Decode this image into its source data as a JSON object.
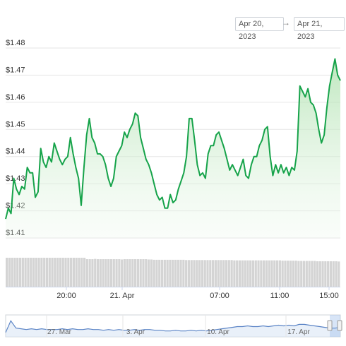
{
  "range_selector": {
    "from": "Apr 20, 2023",
    "arrow": "→",
    "to": "Apr 21, 2023"
  },
  "chart_data": [
    {
      "type": "area",
      "y_tick_labels": [
        "$1.48",
        "$1.47",
        "$1.46",
        "$1.45",
        "$1.44",
        "$1.43",
        "$1.42",
        "$1.41"
      ],
      "x_tick_labels": [
        "20:00",
        "21. Apr",
        "07:00",
        "11:00",
        "15:00"
      ],
      "ylim": [
        1.41,
        1.48
      ],
      "grid": true,
      "line_color": "#16a34a",
      "fill_color": "#c9ecc9",
      "series": [
        {
          "values": [
            1.417,
            1.421,
            1.419,
            1.432,
            1.428,
            1.426,
            1.429,
            1.428,
            1.436,
            1.434,
            1.434,
            1.425,
            1.427,
            1.443,
            1.438,
            1.436,
            1.44,
            1.438,
            1.445,
            1.442,
            1.439,
            1.437,
            1.439,
            1.44,
            1.447,
            1.441,
            1.436,
            1.432,
            1.422,
            1.436,
            1.448,
            1.454,
            1.447,
            1.445,
            1.441,
            1.441,
            1.44,
            1.437,
            1.432,
            1.429,
            1.432,
            1.44,
            1.442,
            1.444,
            1.449,
            1.447,
            1.45,
            1.452,
            1.456,
            1.455,
            1.447,
            1.443,
            1.439,
            1.437,
            1.434,
            1.43,
            1.426,
            1.424,
            1.425,
            1.421,
            1.421,
            1.426,
            1.423,
            1.424,
            1.428,
            1.431,
            1.434,
            1.44,
            1.454,
            1.454,
            1.446,
            1.437,
            1.433,
            1.434,
            1.432,
            1.441,
            1.444,
            1.444,
            1.448,
            1.449,
            1.446,
            1.443,
            1.439,
            1.435,
            1.437,
            1.435,
            1.433,
            1.436,
            1.439,
            1.433,
            1.432,
            1.437,
            1.44,
            1.44,
            1.444,
            1.446,
            1.45,
            1.451,
            1.44,
            1.433,
            1.437,
            1.434,
            1.437,
            1.434,
            1.436,
            1.433,
            1.436,
            1.435,
            1.442,
            1.466,
            1.464,
            1.462,
            1.465,
            1.46,
            1.459,
            1.456,
            1.45,
            1.445,
            1.448,
            1.458,
            1.466,
            1.471,
            1.476,
            1.47,
            1.468
          ]
        }
      ]
    },
    {
      "type": "bar",
      "name": "volume",
      "color": "#d4d4d4",
      "series": [
        {
          "values": [
            1,
            1,
            1,
            1,
            1,
            1,
            1,
            1,
            1,
            1,
            1,
            1,
            1,
            1,
            1,
            1,
            1,
            1,
            1,
            1,
            1,
            1,
            1,
            1,
            1,
            1,
            1,
            1,
            1,
            1,
            0.95,
            0.95,
            0.95,
            0.96,
            0.95,
            0.95,
            0.95,
            0.95,
            0.95,
            0.95,
            0.95,
            0.95,
            0.95,
            0.94,
            0.95,
            0.95,
            0.95,
            0.95,
            0.95,
            0.95,
            0.95,
            0.95,
            0.95,
            0.94,
            0.94,
            0.93,
            0.93,
            0.93,
            0.93,
            0.93,
            0.93,
            0.93,
            0.93,
            0.93,
            0.93,
            0.93,
            0.93,
            0.92,
            0.92,
            0.92,
            0.92,
            0.92,
            0.92,
            0.92,
            0.92,
            0.92,
            0.92,
            0.92,
            0.92,
            0.92,
            0.92,
            0.92,
            0.92,
            0.92,
            0.92,
            0.91,
            0.91,
            0.91,
            0.91,
            0.91,
            0.91,
            0.91,
            0.91,
            0.91,
            0.91,
            0.91,
            0.91,
            0.91,
            0.91,
            0.91,
            0.91,
            0.91,
            0.91,
            0.9,
            0.9,
            0.9,
            0.9,
            0.9,
            0.9,
            0.89,
            0.89,
            0.89,
            0.89,
            0.89,
            0.89,
            0.89,
            0.88,
            0.88,
            0.88,
            0.88,
            0.88,
            0.88,
            0.88,
            0.88,
            0.87
          ]
        }
      ]
    },
    {
      "type": "line",
      "name": "navigator",
      "x_tick_labels": [
        "27. Mar",
        "3. Apr",
        "10. Apr",
        "17. Apr"
      ],
      "color": "#5b84c6",
      "series": [
        {
          "values": [
            1.36,
            1.52,
            1.42,
            1.41,
            1.4,
            1.41,
            1.4,
            1.41,
            1.4,
            1.4,
            1.4,
            1.41,
            1.4,
            1.41,
            1.4,
            1.4,
            1.41,
            1.4,
            1.4,
            1.39,
            1.4,
            1.39,
            1.4,
            1.39,
            1.39,
            1.4,
            1.39,
            1.4,
            1.4,
            1.39,
            1.39,
            1.38,
            1.38,
            1.39,
            1.38,
            1.38,
            1.39,
            1.38,
            1.39,
            1.38,
            1.39,
            1.4,
            1.41,
            1.42,
            1.43,
            1.44,
            1.44,
            1.45,
            1.44,
            1.44,
            1.45,
            1.44,
            1.45,
            1.46,
            1.45,
            1.46,
            1.45,
            1.47,
            1.47,
            1.46,
            1.45,
            1.44,
            1.43,
            1.42,
            1.42,
            1.43
          ]
        }
      ]
    }
  ]
}
